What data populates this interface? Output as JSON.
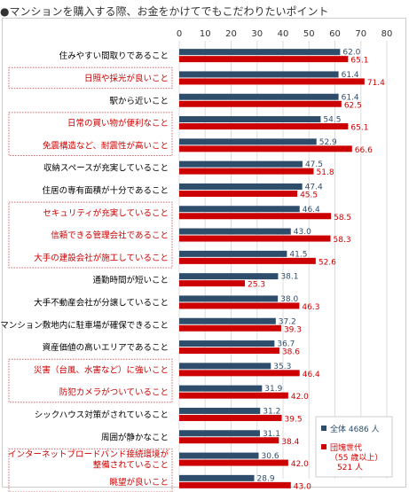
{
  "title": "マンションを購入する際、お金をかけてでもこだわりたいポイント",
  "colors": {
    "series_all": "#2e4d6b",
    "series_group": "#cc0000",
    "label_highlight": "#cc0000",
    "label_normal": "#000000",
    "grid": "#dddddd",
    "box": "#cc6666"
  },
  "chart_data": {
    "type": "bar",
    "orientation": "horizontal",
    "title": "マンションを購入する際、お金をかけてでもこだわりたいポイント",
    "xlim": [
      0,
      80
    ],
    "ticks": [
      0,
      10,
      20,
      30,
      40,
      50,
      60,
      70,
      80
    ],
    "grid": true,
    "legend_position": "bottom-right",
    "series": [
      {
        "name": "全体 4686 人",
        "legend_lines": [
          "全体 4686 人"
        ],
        "color": "#2e4d6b",
        "values": [
          62.0,
          61.4,
          61.4,
          54.5,
          52.9,
          47.5,
          47.4,
          46.4,
          43.0,
          41.5,
          38.1,
          38.0,
          37.2,
          36.7,
          35.3,
          31.9,
          31.2,
          31.1,
          30.6,
          28.9
        ]
      },
      {
        "name": "団塊世代（55 歳以上）521 人",
        "legend_lines": [
          "団塊世代",
          "（55 歳以上）",
          "521 人"
        ],
        "color": "#cc0000",
        "values": [
          65.1,
          71.4,
          62.5,
          65.1,
          66.6,
          51.8,
          45.5,
          58.5,
          58.3,
          52.6,
          25.3,
          46.3,
          39.3,
          38.6,
          46.4,
          42.0,
          39.5,
          38.4,
          42.0,
          43.0
        ]
      }
    ],
    "value_labels": {
      "all": [
        "62.0",
        "61.4",
        "61.4",
        "54.5",
        "52.9",
        "47.5",
        "47.4",
        "46.4",
        "43.0",
        "41.5",
        "38.1",
        "38.0",
        "37.2",
        "36.7",
        "35.3",
        "31.9",
        "31.2",
        "31.1",
        "30.6",
        "28.9"
      ],
      "group": [
        "65.1",
        "71.4",
        "62.5",
        "65.1",
        "66.6",
        "51.8",
        "45.5",
        "58.5",
        "58.3",
        "52.6",
        "25.3",
        "46.3",
        "39.3",
        "38.6",
        "46.4",
        "42.0",
        "39.5",
        "38.4",
        "42.0",
        "43.0"
      ]
    },
    "categories": [
      {
        "lines": [
          "住みやすい間取りであること"
        ],
        "highlight": false
      },
      {
        "lines": [
          "日照や採光が良いこと"
        ],
        "highlight": true
      },
      {
        "lines": [
          "駅から近いこと"
        ],
        "highlight": false
      },
      {
        "lines": [
          "日常の買い物が便利なこと"
        ],
        "highlight": true
      },
      {
        "lines": [
          "免震構造など、耐震性が高いこと"
        ],
        "highlight": true
      },
      {
        "lines": [
          "収納スペースが充実していること"
        ],
        "highlight": false
      },
      {
        "lines": [
          "住居の専有面積が十分であること"
        ],
        "highlight": false
      },
      {
        "lines": [
          "セキュリティが充実していること"
        ],
        "highlight": true
      },
      {
        "lines": [
          "信頼できる管理会社であること"
        ],
        "highlight": true
      },
      {
        "lines": [
          "大手の建設会社が施工していること"
        ],
        "highlight": true
      },
      {
        "lines": [
          "通勤時間が短いこと"
        ],
        "highlight": false
      },
      {
        "lines": [
          "大手不動産会社が分譲していること"
        ],
        "highlight": false
      },
      {
        "lines": [
          "マンション敷地内に駐車場が確保できること"
        ],
        "highlight": false
      },
      {
        "lines": [
          "資産価値の高いエリアであること"
        ],
        "highlight": false
      },
      {
        "lines": [
          "災害（台風、水害など）に強いこと"
        ],
        "highlight": true
      },
      {
        "lines": [
          "防犯カメラがついていること"
        ],
        "highlight": true
      },
      {
        "lines": [
          "シックハウス対策がされていること"
        ],
        "highlight": false
      },
      {
        "lines": [
          "周囲が静かなこと"
        ],
        "highlight": false
      },
      {
        "lines": [
          "インターネットブロードバンド接続環境が",
          "整備されていること"
        ],
        "highlight": true
      },
      {
        "lines": [
          "眺望が良いこと"
        ],
        "highlight": true
      }
    ]
  }
}
